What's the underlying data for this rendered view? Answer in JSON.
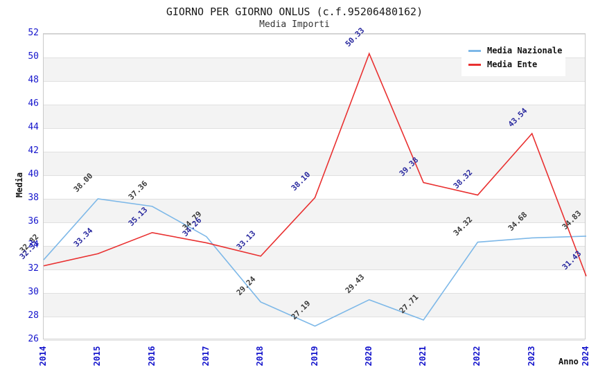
{
  "header": {
    "title": "GIORNO PER GIORNO ONLUS (c.f.95206480162)",
    "subtitle": "Media Importi"
  },
  "chart_data": {
    "type": "line",
    "x": [
      2014,
      2015,
      2016,
      2017,
      2018,
      2019,
      2020,
      2021,
      2022,
      2023,
      2024
    ],
    "xlabel": "Anno",
    "ylabel": "Media",
    "ylim": [
      26,
      52
    ],
    "ytick_step": 2,
    "grid": true,
    "band_fill": "alternating",
    "legend_position": "top-right",
    "series": [
      {
        "name": "Media Nazionale",
        "color": "#7db8e8",
        "label_color": "#3a3a3a",
        "values": [
          32.82,
          38.0,
          37.36,
          34.79,
          29.24,
          27.19,
          29.43,
          27.71,
          34.32,
          34.68,
          34.83
        ]
      },
      {
        "name": "Media Ente",
        "color": "#e93030",
        "label_color": "#28289e",
        "values": [
          32.31,
          33.34,
          35.13,
          34.26,
          33.13,
          38.1,
          50.33,
          39.38,
          38.32,
          43.54,
          31.43
        ]
      }
    ],
    "colors": {
      "tick_label": "#1414cc",
      "band": "#f3f3f3",
      "grid": "#e0e0e0",
      "border": "#c9c9c9"
    }
  }
}
